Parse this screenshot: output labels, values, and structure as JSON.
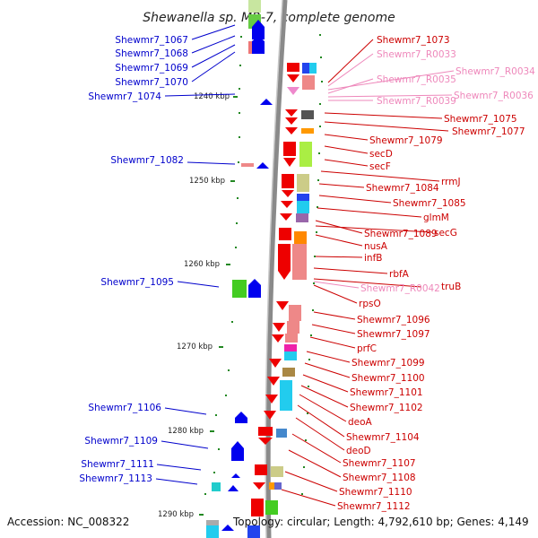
{
  "title": "Shewanella sp. MR-7, complete genome",
  "footer": {
    "accession": "Accession: NC_008322",
    "topology": "Topology: circular; Length: 4,792,610 bp; Genes: 4,149"
  },
  "kbp_ticks": [
    "1240 kbp",
    "1250 kbp",
    "1260 kbp",
    "1270 kbp",
    "1280 kbp",
    "1290 kbp"
  ],
  "left_labels": [
    "Shewmr7_1067",
    "Shewmr7_1068",
    "Shewmr7_1069",
    "Shewmr7_1070",
    "Shewmr7_1074",
    "Shewmr7_1082",
    "Shewmr7_1095",
    "Shewmr7_1106",
    "Shewmr7_1109",
    "Shewmr7_1111",
    "Shewmr7_1113"
  ],
  "right_labels": [
    "Shewmr7_1073",
    "Shewmr7_R0033",
    "Shewmr7_R0034",
    "Shewmr7_R0035",
    "Shewmr7_R0036",
    "Shewmr7_R0039",
    "Shewmr7_1075",
    "Shewmr7_1077",
    "Shewmr7_1079",
    "secD",
    "secF",
    "rrmJ",
    "Shewmr7_1084",
    "Shewmr7_1085",
    "glmM",
    "Shewmr7_1089",
    "secG",
    "nusA",
    "infB",
    "rbfA",
    "truB",
    "Shewmr7_R0042",
    "rpsO",
    "Shewmr7_1096",
    "Shewmr7_1097",
    "prfC",
    "Shewmr7_1099",
    "Shewmr7_1100",
    "Shewmr7_1101",
    "Shewmr7_1102",
    "deoA",
    "Shewmr7_1104",
    "deoD",
    "Shewmr7_1107",
    "Shewmr7_1108",
    "Shewmr7_1110",
    "Shewmr7_1112"
  ],
  "colors": {
    "left_label": "#0000cc",
    "right_label": "#cc0000",
    "rna_label": "#ee88bb",
    "tick_marker": "#228822",
    "forward_arrow": "#0000ee",
    "reverse_arrow": "#ee0000"
  }
}
